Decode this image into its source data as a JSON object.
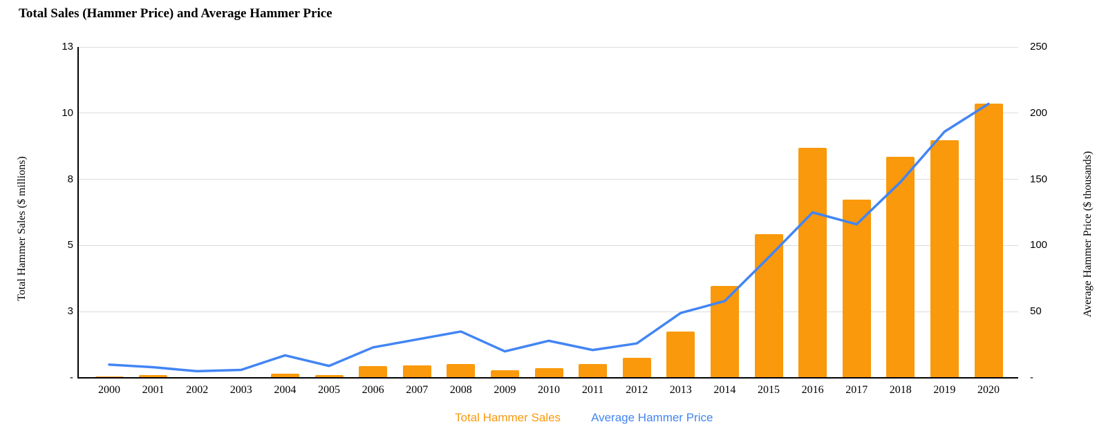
{
  "chart_data": {
    "type": "combo-bar-line",
    "title": "Total Sales (Hammer Price) and Average Hammer Price",
    "categories": [
      "2000",
      "2001",
      "2002",
      "2003",
      "2004",
      "2005",
      "2006",
      "2007",
      "2008",
      "2009",
      "2010",
      "2011",
      "2012",
      "2013",
      "2014",
      "2015",
      "2016",
      "2017",
      "2018",
      "2019",
      "2020"
    ],
    "series": [
      {
        "name": "Total Hammer Sales",
        "type": "bar",
        "axis": "left",
        "color": "#F9990B",
        "values": [
          0.05,
          0.1,
          0.02,
          0.03,
          0.16,
          0.1,
          0.45,
          0.46,
          0.51,
          0.29,
          0.37,
          0.52,
          0.75,
          1.74,
          3.48,
          5.44,
          8.7,
          6.73,
          8.35,
          8.98,
          10.35
        ]
      },
      {
        "name": "Average Hammer Price",
        "type": "line",
        "axis": "right",
        "color": "#4285F4",
        "values": [
          10,
          8,
          5,
          6,
          17,
          9,
          23,
          29,
          35,
          20,
          28,
          21,
          26,
          49,
          58,
          91,
          125,
          116,
          148,
          186,
          207
        ]
      }
    ],
    "left_axis": {
      "title": "Total Hammer Sales ($ millions)",
      "tick_labels": [
        "13",
        "10",
        "8",
        "5",
        "3",
        "-"
      ],
      "tick_values": [
        12.5,
        10,
        7.5,
        5,
        2.5,
        0
      ],
      "range": [
        0,
        12.5
      ]
    },
    "right_axis": {
      "title": "Average Hammer Price ($ thousands)",
      "tick_labels": [
        "250",
        "200",
        "150",
        "100",
        "50",
        "-"
      ],
      "tick_values": [
        250,
        200,
        150,
        100,
        50,
        0
      ],
      "range": [
        0,
        250
      ]
    },
    "legend": {
      "position": "bottom-center"
    },
    "grid": true,
    "gridline_color": "#dcdcdc"
  }
}
